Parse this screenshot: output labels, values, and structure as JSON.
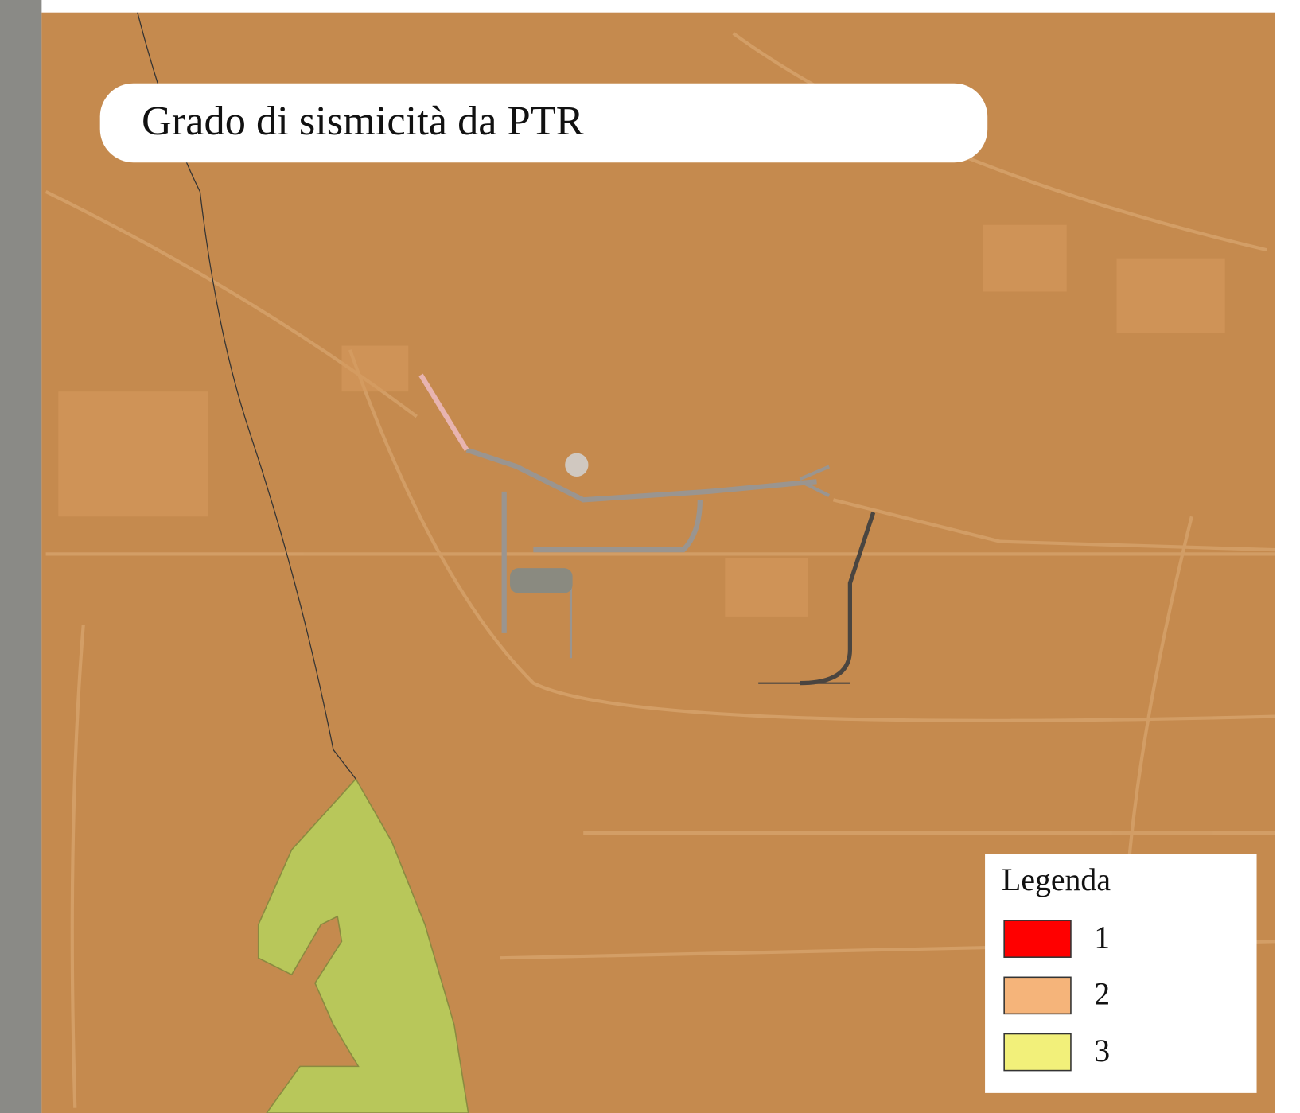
{
  "title": "Grado di sismicità da PTR",
  "legend": {
    "title": "Legenda",
    "items": [
      {
        "label": "1",
        "color": "#ff0000"
      },
      {
        "label": "2",
        "color": "#f5b47a"
      },
      {
        "label": "3",
        "color": "#f2f07a"
      }
    ]
  }
}
